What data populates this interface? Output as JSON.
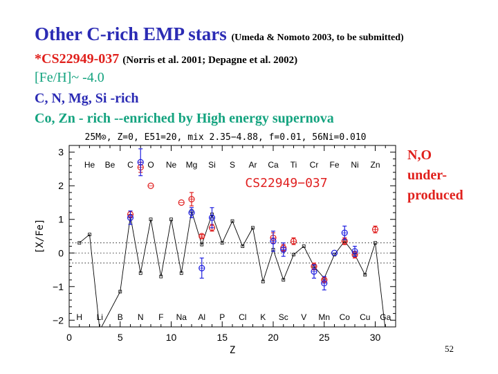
{
  "slide": {
    "title_main": "Other C-rich EMP stars",
    "title_ref": "(Umeda & Nomoto 2003, to be submitted)",
    "star_name": "*CS22949-037",
    "star_ref": "(Norris et al. 2001; Depagne et al. 2002)",
    "feh": "[Fe/H]~ -4.0",
    "rich": "C, N, Mg, Si -rich",
    "enriched": "Co, Zn - rich --enriched by High energy supernova",
    "note_line1": "N,O",
    "note_line2": "under-",
    "note_line3": "produced",
    "page_number": "52"
  },
  "colors": {
    "title_blue": "#2b2bb4",
    "red": "#e0201c",
    "green": "#14a37f",
    "obs_red": "#e02020",
    "obs_blue": "#2020e0"
  },
  "chart_data": {
    "type": "line",
    "title": "25M⊙, Z=0, E51=20, mix 2.35−4.88, f=0.01, 56Ni=0.010",
    "xlabel": "Z",
    "ylabel": "[X/Fe]",
    "xlim": [
      0,
      32
    ],
    "ylim": [
      -2.2,
      3.2
    ],
    "xticks": [
      0,
      5,
      10,
      15,
      20,
      25,
      30
    ],
    "yticks": [
      -2,
      -1,
      0,
      1,
      2,
      3
    ],
    "annotation": "CS22949−037",
    "dotted_lines": [
      0.3,
      0.0,
      -0.3
    ],
    "elements_top": [
      {
        "name": "He",
        "z": 2
      },
      {
        "name": "Be",
        "z": 4
      },
      {
        "name": "C",
        "z": 6
      },
      {
        "name": "O",
        "z": 8
      },
      {
        "name": "Ne",
        "z": 10
      },
      {
        "name": "Mg",
        "z": 12
      },
      {
        "name": "Si",
        "z": 14
      },
      {
        "name": "S",
        "z": 16
      },
      {
        "name": "Ar",
        "z": 18
      },
      {
        "name": "Ca",
        "z": 20
      },
      {
        "name": "Ti",
        "z": 22
      },
      {
        "name": "Cr",
        "z": 24
      },
      {
        "name": "Fe",
        "z": 26
      },
      {
        "name": "Ni",
        "z": 28
      },
      {
        "name": "Zn",
        "z": 30
      }
    ],
    "elements_bottom": [
      {
        "name": "H",
        "z": 1
      },
      {
        "name": "Li",
        "z": 3
      },
      {
        "name": "B",
        "z": 5
      },
      {
        "name": "N",
        "z": 7
      },
      {
        "name": "F",
        "z": 9
      },
      {
        "name": "Na",
        "z": 11
      },
      {
        "name": "Al",
        "z": 13
      },
      {
        "name": "P",
        "z": 15
      },
      {
        "name": "Cl",
        "z": 17
      },
      {
        "name": "K",
        "z": 19
      },
      {
        "name": "Sc",
        "z": 21
      },
      {
        "name": "V",
        "z": 23
      },
      {
        "name": "Mn",
        "z": 25
      },
      {
        "name": "Co",
        "z": 27
      },
      {
        "name": "Cu",
        "z": 29
      },
      {
        "name": "Ga",
        "z": 31
      }
    ],
    "model": {
      "x": [
        1,
        2,
        3,
        5,
        6,
        7,
        8,
        9,
        10,
        11,
        12,
        13,
        14,
        15,
        16,
        17,
        18,
        19,
        20,
        21,
        22,
        23,
        24,
        25,
        26,
        27,
        28,
        29,
        30,
        31
      ],
      "y": [
        0.3,
        0.55,
        -2.3,
        -1.15,
        1.1,
        -0.6,
        1.0,
        -0.7,
        1.0,
        -0.6,
        1.25,
        0.25,
        1.15,
        0.3,
        0.95,
        0.2,
        0.75,
        -0.85,
        0.1,
        -0.8,
        -0.05,
        0.2,
        -0.4,
        -0.75,
        -0.05,
        0.35,
        -0.05,
        -0.65,
        0.3,
        -2.3
      ]
    },
    "series": [
      {
        "color": "#e02020",
        "points": [
          {
            "z": 6,
            "y": 1.15,
            "err": 0.1
          },
          {
            "z": 7,
            "y": 2.55,
            "err": 0.15
          },
          {
            "z": 8,
            "y": 2.0,
            "err": 0.0
          },
          {
            "z": 11,
            "y": 1.5,
            "err": 0.0
          },
          {
            "z": 12,
            "y": 1.6,
            "err": 0.2
          },
          {
            "z": 13,
            "y": 0.5,
            "err": 0.05
          },
          {
            "z": 14,
            "y": 0.75,
            "err": 0.1
          },
          {
            "z": 20,
            "y": 0.45,
            "err": 0.15
          },
          {
            "z": 21,
            "y": 0.15,
            "err": 0.1
          },
          {
            "z": 22,
            "y": 0.35,
            "err": 0.1
          },
          {
            "z": 24,
            "y": -0.4,
            "err": 0.1
          },
          {
            "z": 25,
            "y": -0.8,
            "err": 0.05
          },
          {
            "z": 27,
            "y": 0.35,
            "err": 0.1
          },
          {
            "z": 28,
            "y": -0.05,
            "err": 0.1
          },
          {
            "z": 30,
            "y": 0.7,
            "err": 0.1
          }
        ]
      },
      {
        "color": "#2020e0",
        "points": [
          {
            "z": 6,
            "y": 1.05,
            "err": 0.2
          },
          {
            "z": 7,
            "y": 2.7,
            "err": 0.4
          },
          {
            "z": 12,
            "y": 1.2,
            "err": 0.15
          },
          {
            "z": 13,
            "y": -0.45,
            "err": 0.3
          },
          {
            "z": 14,
            "y": 1.05,
            "err": 0.3
          },
          {
            "z": 20,
            "y": 0.35,
            "err": 0.3
          },
          {
            "z": 21,
            "y": 0.1,
            "err": 0.2
          },
          {
            "z": 24,
            "y": -0.55,
            "err": 0.2
          },
          {
            "z": 25,
            "y": -0.9,
            "err": 0.2
          },
          {
            "z": 26,
            "y": 0.0,
            "err": 0.0
          },
          {
            "z": 27,
            "y": 0.6,
            "err": 0.2
          },
          {
            "z": 28,
            "y": 0.05,
            "err": 0.15
          }
        ]
      }
    ]
  }
}
